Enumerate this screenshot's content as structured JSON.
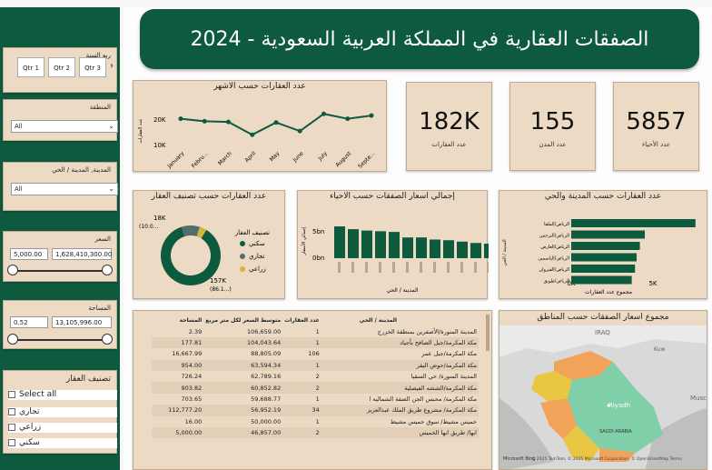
{
  "header": {
    "title": "الصفقات العقارية في المملكة العربية السعودية - 2024"
  },
  "filters": {
    "quarter": {
      "label": "ربع السنة",
      "options": [
        "Qtr 1",
        "Qtr 2",
        "Qtr 3"
      ]
    },
    "region": {
      "label": "المنطقة",
      "value": "All"
    },
    "city_district": {
      "label": "المدينة, المدينة / الحي",
      "value": "All"
    },
    "price": {
      "label": "السعر",
      "min": "5,000.00",
      "max": "1,628,410,300.00"
    },
    "area": {
      "label": "المساحة",
      "min": "0.52",
      "max": "13,105,996.00"
    },
    "classification": {
      "label": "تصنيف العقار",
      "select_all": "Select all",
      "options": [
        "تجاري",
        "زراعي",
        "سكني"
      ]
    }
  },
  "kpis": [
    {
      "value": "5857",
      "label": "عدد الأحياء"
    },
    {
      "value": "155",
      "label": "عدد المدن"
    },
    {
      "value": "182K",
      "label": "عدد العقارات"
    }
  ],
  "line_chart": {
    "title": "عدد العقارات حسب الأشهر",
    "ylabel": "عدد العقارات",
    "yticks": [
      "20K",
      "10K"
    ],
    "chart_data": {
      "type": "line",
      "categories": [
        "January",
        "Febru...",
        "March",
        "April",
        "May",
        "June",
        "July",
        "August",
        "Septe..."
      ],
      "values": [
        20500,
        19500,
        19200,
        14000,
        19000,
        15500,
        22500,
        20500,
        21800
      ],
      "ylim": [
        10000,
        25000
      ]
    }
  },
  "donut": {
    "title": "عدد العقارات حسب تصنيف العقار",
    "legend_title": "تصنيف العقار",
    "legend": [
      "سكني",
      "تجاري",
      "زراعي"
    ],
    "colors": [
      "#0e5a3e",
      "#4f6e6e",
      "#d4b43a"
    ],
    "label_top": "18K",
    "label_top_sub": "(10.0...",
    "label_bottom": "157K",
    "label_bottom_sub": "(86.1...)",
    "chart_data": {
      "type": "pie",
      "categories": [
        "سكني",
        "تجاري",
        "زراعي"
      ],
      "values": [
        157,
        18,
        7
      ]
    }
  },
  "district_bar": {
    "title": "إجمالي أسعار الصفقات حسب الأحياء",
    "ylabel": "إجمالي الأسعار",
    "xlabel": "المدينة / الحي",
    "yticks": [
      "5bn",
      "0bn"
    ],
    "chart_data": {
      "type": "bar",
      "values": [
        4.6,
        4.2,
        4.0,
        3.9,
        3.8,
        3.0,
        3.0,
        2.7,
        2.6,
        2.4,
        2.2,
        2.1
      ],
      "ylim": [
        0,
        6
      ]
    }
  },
  "city_bar": {
    "title": "عدد العقارات حسب المدينة والحي",
    "ylabel": "المدينة / الحي",
    "xlabel": "مجموع عدد العقارات",
    "xticks": [
      "0K",
      "5K"
    ],
    "chart_data": {
      "type": "bar",
      "categories": [
        "الرياض/الملقا",
        "الرياض/النرجس",
        "الرياض/العارض",
        "الرياض/الياسمين",
        "الرياض/القيروان",
        "الرياض/طويق"
      ],
      "values": [
        7600,
        4500,
        4200,
        4000,
        3900,
        3700
      ],
      "xlim": [
        0,
        8000
      ]
    }
  },
  "table": {
    "headers": [
      "المدينة / الحي",
      "عدد العقارات",
      "متوسط السعر لكل متر مربع",
      "المساحة"
    ],
    "rows": [
      [
        "المدينة المنورة/الأصفرين بمنطقة الخزرج",
        "1",
        "106,659.00",
        "2.39"
      ],
      [
        "مكة المكرمة/جبل الصافح بأجياد",
        "1",
        "104,043.64",
        "177.81"
      ],
      [
        "مكة المكرمة/جبل عمر",
        "106",
        "88,805.09",
        "16,667.99"
      ],
      [
        "مكة المكرمة/حوض البقر",
        "1",
        "63,594.34",
        "954.00"
      ],
      [
        "المدينة المنورة/ حي السقيا",
        "2",
        "62,789.16",
        "726.24"
      ],
      [
        "مكة المكرمة/الششه الفيصلية",
        "2",
        "60,852.82",
        "903.82"
      ],
      [
        "مكة المكرمة/ محبس الجن الصفة الشماليه ا",
        "1",
        "59,688.77",
        "703.65"
      ],
      [
        "مكة المكرمة/ مشروع طريق الملك عبدالعزيز",
        "34",
        "56,952.19",
        "112,777.20"
      ],
      [
        "خميس مشيط/ سوق خميس مشيط",
        "1",
        "50,000.00",
        "16.00"
      ],
      [
        "ابها/ طريق ابها الخميس",
        "2",
        "46,857.00",
        "5,000.00"
      ]
    ]
  },
  "map": {
    "title": "مجموع أسعار الصفقات حسب المناطق",
    "labels": {
      "riyadh": "Riyadh",
      "saudi": "SAUDI ARABIA",
      "iraq": "IRAQ",
      "kuwait": "Kuw",
      "musc": "Musc"
    },
    "attribution": "© 2025 TomTom, © 2025 Microsoft Corporation, © OpenStreetMap  Terms",
    "brand": "Microsoft Bing"
  }
}
